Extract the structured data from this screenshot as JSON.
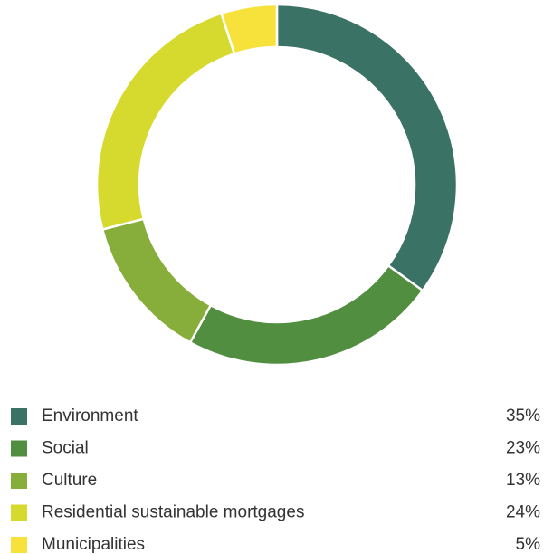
{
  "chart_data": {
    "type": "pie",
    "donut": true,
    "categories": [
      "Environment",
      "Social",
      "Culture",
      "Residential sustainable mortgages",
      "Municipalities"
    ],
    "values": [
      35,
      23,
      13,
      24,
      5
    ],
    "value_labels": [
      "35%",
      "23%",
      "13%",
      "24%",
      "5%"
    ],
    "colors": [
      "#3a7265",
      "#528e3f",
      "#87ad3b",
      "#d7da2e",
      "#f7e23b"
    ]
  }
}
